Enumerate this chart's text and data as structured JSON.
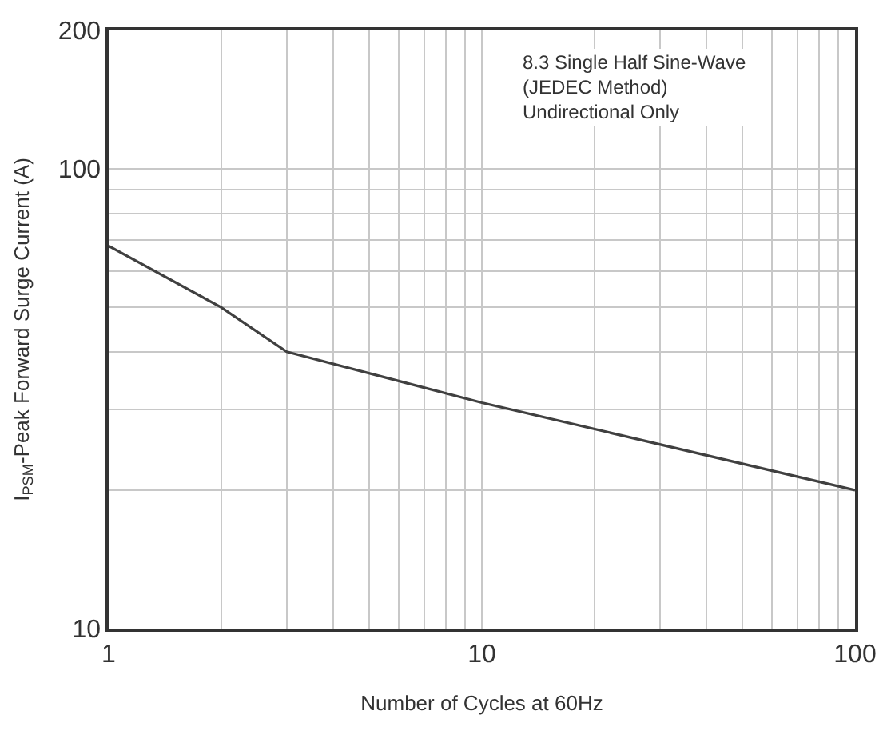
{
  "chart_data": {
    "type": "line",
    "xlabel": "Number of Cycles at 60Hz",
    "ylabel": "I$_{PSM}$-Peak Forward Surge Current (A)",
    "x": [
      1,
      2,
      3,
      10,
      100
    ],
    "series": [
      {
        "color": "#404040",
        "values": [
          68,
          50,
          40,
          31,
          20
        ]
      }
    ],
    "log": "xy",
    "xlim": [
      1,
      100
    ],
    "xticks": [
      1,
      10,
      100
    ],
    "ylim": [
      10,
      200
    ],
    "yticks": [
      10,
      100,
      200
    ],
    "grid": true,
    "marker": "none",
    "line_style": "solid",
    "annotations": [
      "8.3 Single Half Sine-Wave\n(JEDEC Method)\nUndirectional Only"
    ]
  }
}
